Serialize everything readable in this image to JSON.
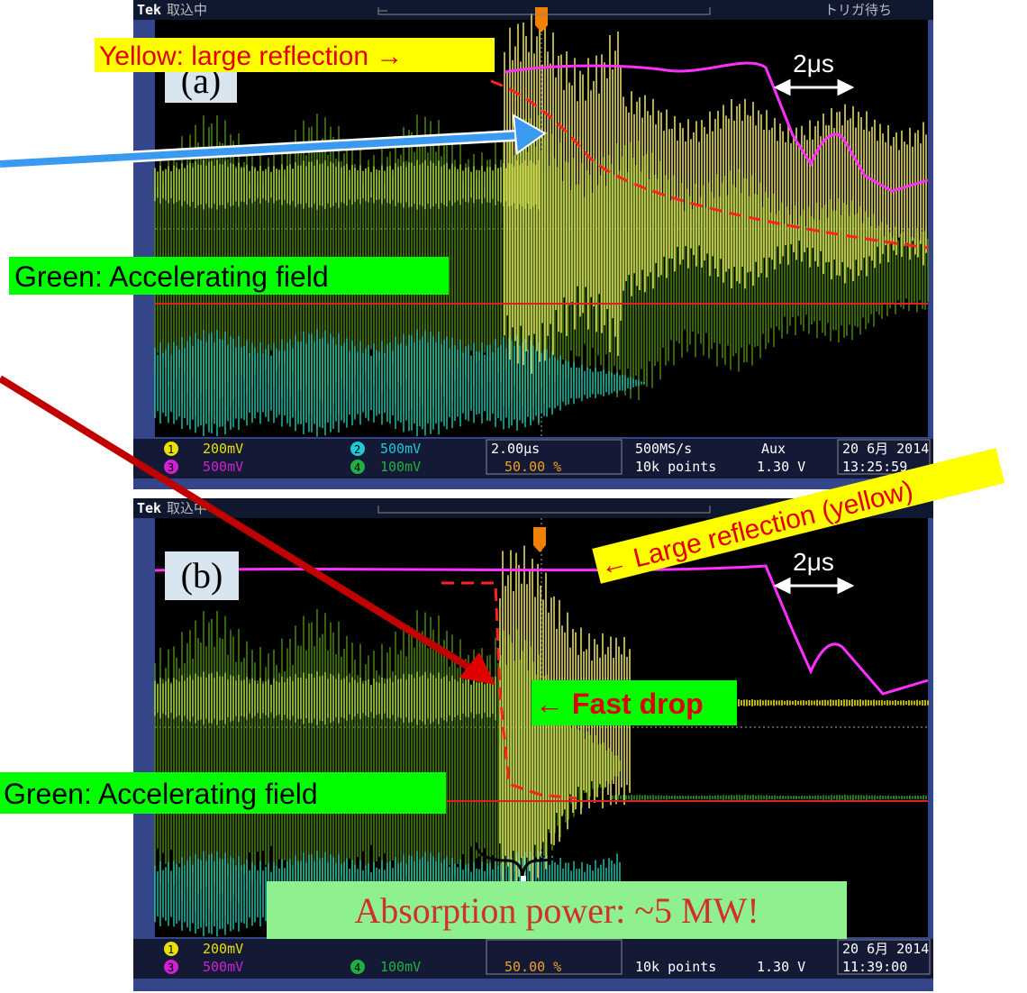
{
  "panels": [
    {
      "header": {
        "brand": "Tek",
        "status": "取込中",
        "trigger": "トリガ待ち"
      },
      "label": "(a)",
      "time_marker": "2μs",
      "annotations": [
        "Yellow: large reflection →",
        "Green: Accelerating field"
      ],
      "status_bar": {
        "ch1": "1",
        "ch1_scale": "200mV",
        "ch2": "2",
        "ch2_scale": "500mV",
        "ch3": "3",
        "ch3_scale": "500mV",
        "ch4": "4",
        "ch4_scale": "100mV",
        "timebase": "2.00μs",
        "trigger_pos": "50.00 %",
        "rate": "500MS/s",
        "points": "10k points",
        "source": "Aux",
        "level": "1.30 V",
        "date": "20 6月 2014",
        "time": "13:25:59"
      }
    },
    {
      "header": {
        "brand": "Tek",
        "status": "取込中"
      },
      "label": "(b)",
      "time_marker": "2μs",
      "annotations": [
        "← Large reflection (yellow)",
        "← Fast drop",
        "Green: Accelerating field",
        "Absorption power: ~5 MW!"
      ],
      "status_bar": {
        "ch1": "1",
        "ch1_scale": "200mV",
        "ch3": "3",
        "ch3_scale": "500mV",
        "ch4": "4",
        "ch4_scale": "100mV",
        "trigger_pos": "50.00 %",
        "points": "10k points",
        "level": "1.30 V",
        "date": "20 6月 2014",
        "time": "11:39:00"
      }
    }
  ]
}
